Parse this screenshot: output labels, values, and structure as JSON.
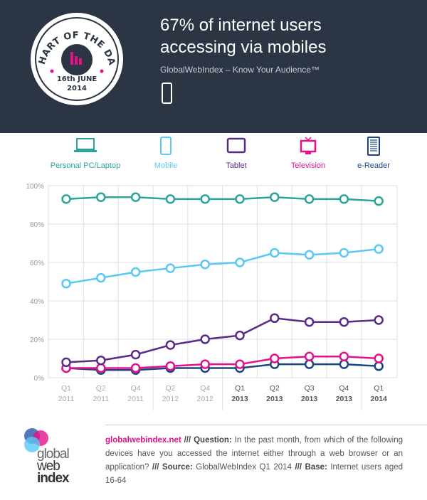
{
  "header": {
    "badge_line1": "CHART OF THE DAY",
    "badge_date": "16th JUNE",
    "badge_year": "2014",
    "title_line1": "67% of internet users",
    "title_line2": "accessing via mobiles",
    "subtitle": "GlobalWebIndex – Know Your Audience™"
  },
  "legend": [
    {
      "label": "Personal PC/Laptop",
      "color": "#2ba598",
      "icon": "laptop-icon"
    },
    {
      "label": "Mobile",
      "color": "#5ac8f5",
      "icon": "mobile-icon"
    },
    {
      "label": "Tablet",
      "color": "#5b2a86",
      "icon": "tablet-icon"
    },
    {
      "label": "Television",
      "color": "#e5118a",
      "icon": "television-icon"
    },
    {
      "label": "e-Reader",
      "color": "#1d4580",
      "icon": "ereader-icon"
    }
  ],
  "chart_data": {
    "type": "line",
    "categories": [
      [
        "Q1",
        "2011"
      ],
      [
        "Q2",
        "2011"
      ],
      [
        "Q4",
        "2011"
      ],
      [
        "Q2",
        "2012"
      ],
      [
        "Q4",
        "2012"
      ],
      [
        "Q1",
        "2013"
      ],
      [
        "Q2",
        "2013"
      ],
      [
        "Q3",
        "2013"
      ],
      [
        "Q4",
        "2013"
      ],
      [
        "Q1",
        "2014"
      ]
    ],
    "ylim": [
      0,
      100
    ],
    "yticks": [
      "0%",
      "20%",
      "40%",
      "60%",
      "80%",
      "100%"
    ],
    "grid": true,
    "series": [
      {
        "name": "Personal PC/Laptop",
        "color": "#2ba598",
        "values": [
          93,
          94,
          94,
          93,
          93,
          93,
          94,
          93,
          93,
          92
        ]
      },
      {
        "name": "Mobile",
        "color": "#5ac8f5",
        "values": [
          49,
          52,
          55,
          57,
          59,
          60,
          65,
          64,
          65,
          67
        ]
      },
      {
        "name": "e-Reader",
        "color": "#1d4580",
        "values": [
          5,
          4,
          4,
          5,
          5,
          5,
          7,
          7,
          7,
          6
        ]
      },
      {
        "name": "Television",
        "color": "#e5118a",
        "values": [
          5,
          5,
          5,
          6,
          7,
          7,
          10,
          11,
          11,
          10
        ]
      },
      {
        "name": "Tablet",
        "color": "#5b2a86",
        "values": [
          8,
          9,
          12,
          17,
          20,
          22,
          31,
          29,
          29,
          30
        ]
      }
    ]
  },
  "footer": {
    "site": "globalwebindex.net",
    "sep": " /// ",
    "q_label": "Question:",
    "question": " In the past month, from which of the following devices have you accessed the internet either through a web browser or an application? ",
    "src_label": "Source:",
    "source": " GlobalWebIndex Q1 2014",
    "base_label": "Base:",
    "base": " Internet users aged 16-64",
    "logo_l1": "global",
    "logo_l2": "web",
    "logo_l3": "index"
  }
}
